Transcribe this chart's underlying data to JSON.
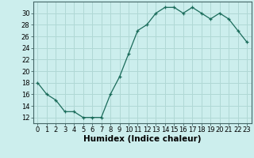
{
  "x": [
    0,
    1,
    2,
    3,
    4,
    5,
    6,
    7,
    8,
    9,
    10,
    11,
    12,
    13,
    14,
    15,
    16,
    17,
    18,
    19,
    20,
    21,
    22,
    23
  ],
  "y": [
    18,
    16,
    15,
    13,
    13,
    12,
    12,
    12,
    16,
    19,
    23,
    27,
    28,
    30,
    31,
    31,
    30,
    31,
    30,
    29,
    30,
    29,
    27,
    25
  ],
  "line_color": "#1a6b5a",
  "marker": "+",
  "bg_color": "#cceeed",
  "grid_color": "#b0d8d5",
  "xlabel": "Humidex (Indice chaleur)",
  "ylim": [
    11,
    32
  ],
  "yticks": [
    12,
    14,
    16,
    18,
    20,
    22,
    24,
    26,
    28,
    30
  ],
  "xticks": [
    0,
    1,
    2,
    3,
    4,
    5,
    6,
    7,
    8,
    9,
    10,
    11,
    12,
    13,
    14,
    15,
    16,
    17,
    18,
    19,
    20,
    21,
    22,
    23
  ],
  "label_fontsize": 7.5,
  "tick_fontsize": 6.0
}
